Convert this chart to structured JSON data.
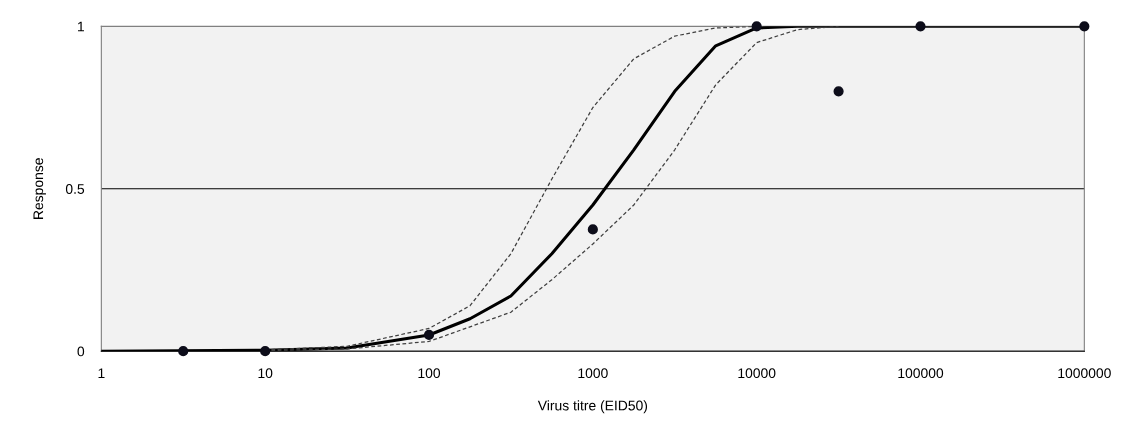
{
  "chart_data": {
    "type": "line",
    "xlabel": "Virus titre (EID50)",
    "ylabel": "Response",
    "log": "x",
    "xlim": [
      1,
      1000000
    ],
    "xticks": [
      1,
      10,
      100,
      1000,
      10000,
      100000,
      1000000
    ],
    "ylim": [
      0,
      1
    ],
    "yticks": [
      0,
      {
        "value": 0.5,
        "label": "0.5"
      },
      1
    ],
    "grid": "y",
    "series": [
      {
        "color": "#000000",
        "line_style": "solid",
        "x": [
          1,
          10,
          31.6,
          100,
          178,
          316,
          562,
          1000,
          1778,
          3162,
          5623,
          10000,
          17783,
          1000000
        ],
        "values": [
          0,
          0.003,
          0.01,
          0.05,
          0.1,
          0.17,
          0.3,
          0.45,
          0.62,
          0.8,
          0.94,
          0.995,
          1,
          1
        ]
      },
      {
        "color": "#404040",
        "line_style": "dashed",
        "x": [
          10,
          31.6,
          100,
          178,
          316,
          562,
          1000,
          1778,
          3162,
          5623,
          10000
        ],
        "values": [
          0.004,
          0.015,
          0.07,
          0.14,
          0.3,
          0.53,
          0.75,
          0.9,
          0.97,
          0.995,
          1
        ]
      },
      {
        "color": "#404040",
        "line_style": "dashed",
        "x": [
          10,
          31.6,
          100,
          316,
          562,
          1000,
          1778,
          3162,
          5623,
          10000,
          17783,
          31623
        ],
        "values": [
          0.002,
          0.007,
          0.03,
          0.12,
          0.22,
          0.33,
          0.45,
          0.62,
          0.82,
          0.95,
          0.99,
          1
        ]
      },
      {
        "type": "scatter",
        "color": "#0d0d1a",
        "marker": "circle",
        "x": [
          3.16,
          10,
          100,
          1000,
          10000,
          31623,
          100000,
          1000000
        ],
        "values": [
          0,
          0,
          0.05,
          0.375,
          1,
          0.8,
          1,
          1
        ]
      }
    ]
  }
}
